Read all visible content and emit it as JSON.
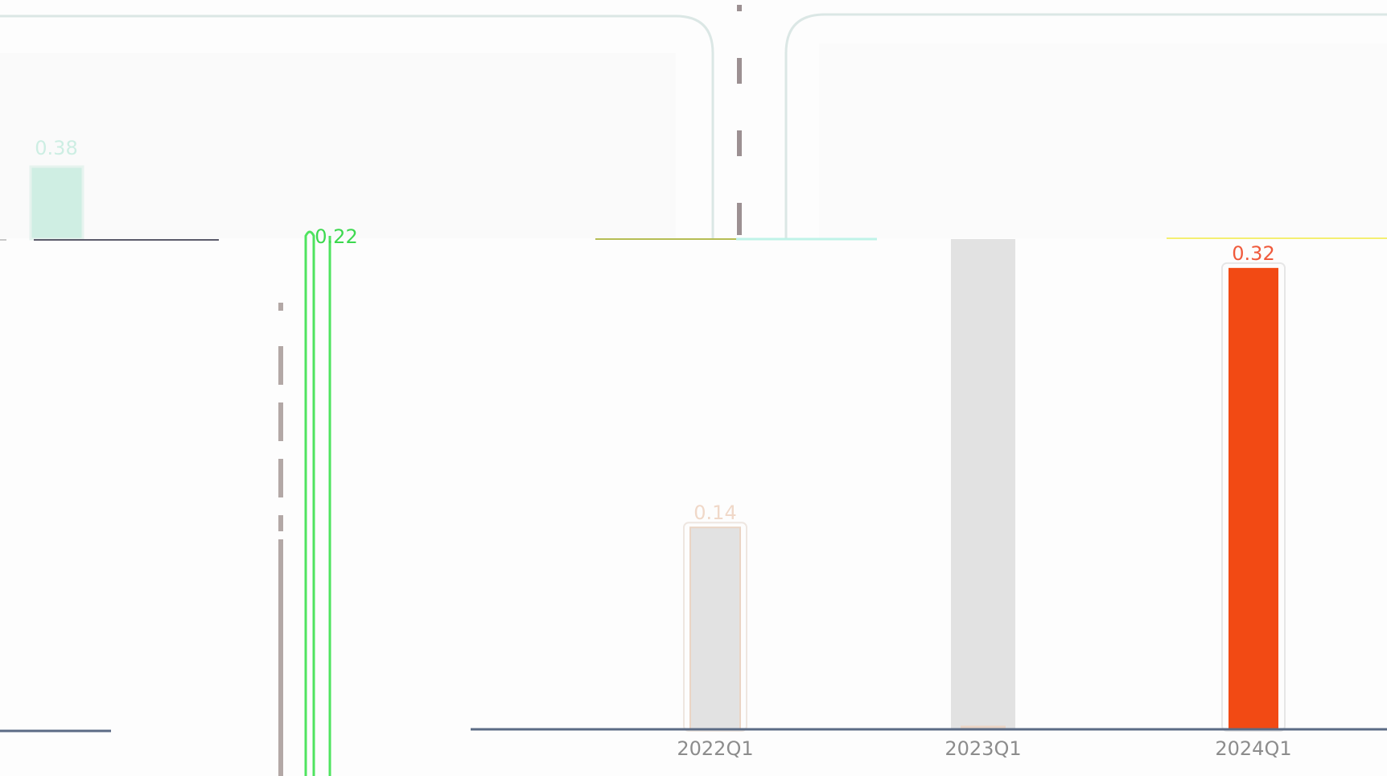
{
  "colors": {
    "page_bg": "#fdfdfd",
    "card_border": "#dbe7e5",
    "divider": "#9c9092",
    "axis": "#5b6b85",
    "upper_bar": "#cfeee3",
    "upper_bar_label": "#cdeee3",
    "grey_bar": "#e2e2e2",
    "grey_bar_outline": "#ead4c4",
    "highlight_bar": "#f24a14",
    "highlight_label": "#f05a3c",
    "faint_label": "#f0d8c8",
    "green_outline": "#4fe45f",
    "tick_label": "#8c8c8c",
    "olive_line": "#b6bd55",
    "cyan_line": "#bff3e8",
    "yellow_line": "#f4ef72"
  },
  "upper_chart": {
    "bar_label": "0.38",
    "bar_value": 0.38
  },
  "green_chart": {
    "bar_label": "0.22",
    "bar_value": 0.22
  },
  "chart_data": {
    "type": "bar",
    "categories": [
      "2022Q1",
      "2023Q1",
      "2024Q1"
    ],
    "values": [
      0.14,
      0.34,
      0.32
    ],
    "data_labels": [
      "0.14",
      "",
      "0.32"
    ],
    "ylim": [
      0,
      0.34
    ],
    "highlight_index": 2
  }
}
